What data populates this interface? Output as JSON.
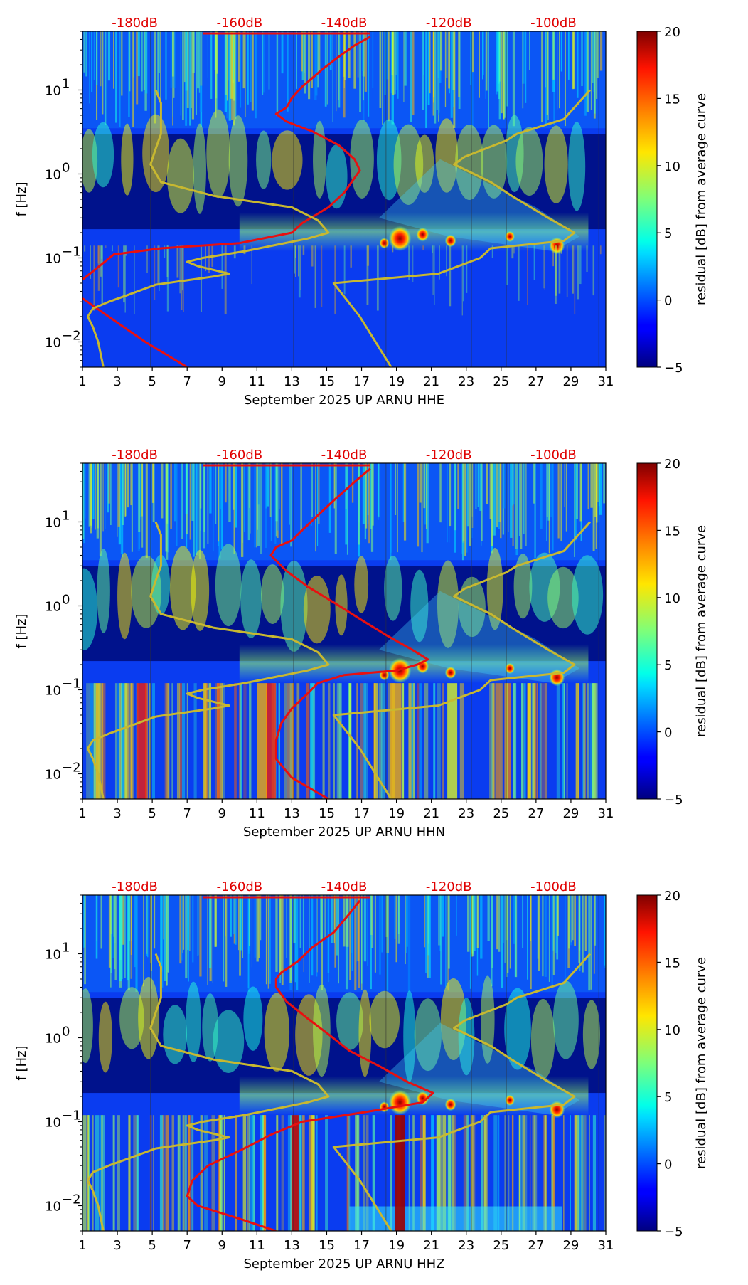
{
  "chart_data": [
    {
      "type": "heatmap",
      "title": "",
      "xlabel": "September 2025 UP ARNU  HHE",
      "ylabel": "f [Hz]",
      "x_ticks": [
        1,
        3,
        5,
        7,
        9,
        11,
        13,
        15,
        17,
        19,
        21,
        23,
        25,
        27,
        29,
        31
      ],
      "xlim": [
        1,
        31
      ],
      "ylim": [
        0.005,
        50
      ],
      "y_scale": "log",
      "y_ticks": [
        {
          "value": 0.01,
          "base": "10",
          "exp": "−2"
        },
        {
          "value": 0.1,
          "base": "10",
          "exp": "−1"
        },
        {
          "value": 1,
          "base": "10",
          "exp": "0"
        },
        {
          "value": 10,
          "base": "10",
          "exp": "1"
        }
      ],
      "top_axis": {
        "labels": [
          "-180dB",
          "-160dB",
          "-140dB",
          "-120dB",
          "-100dB"
        ],
        "values": [
          -180,
          -160,
          -140,
          -120,
          -100
        ],
        "range": [
          -190,
          -90
        ]
      },
      "colorbar": {
        "label": "residual [dB] from average curve",
        "range": [
          -5,
          20
        ],
        "ticks": [
          -5,
          0,
          5,
          10,
          15,
          20
        ],
        "colormap": "jet"
      },
      "series": [
        {
          "name": "average PSD curve (top axis, dB)",
          "color": "#e81010",
          "points": [
            [
              -190,
              0.055
            ],
            [
              -184,
              0.11
            ],
            [
              -175,
              0.13
            ],
            [
              -160,
              0.15
            ],
            [
              -150,
              0.2
            ],
            [
              -148,
              0.26
            ],
            [
              -143,
              0.4
            ],
            [
              -140,
              0.6
            ],
            [
              -138,
              0.9
            ],
            [
              -137,
              1.1
            ],
            [
              -138,
              1.5
            ],
            [
              -141,
              2.2
            ],
            [
              -146,
              3.2
            ],
            [
              -151,
              4.2
            ],
            [
              -153,
              5.2
            ],
            [
              -151,
              6.2
            ],
            [
              -150,
              8
            ],
            [
              -148,
              11
            ],
            [
              -146,
              14
            ],
            [
              -144,
              18
            ],
            [
              -141,
              25
            ],
            [
              -138,
              34
            ],
            [
              -135,
              43
            ]
          ]
        },
        {
          "name": "low-frequency branch (top axis, dB)",
          "color": "#e81010",
          "points": [
            [
              -190,
              0.033
            ],
            [
              -185,
              0.02
            ],
            [
              -178,
              0.01
            ],
            [
              -170,
              0.005
            ]
          ]
        },
        {
          "name": "reference noise model (top axis, dB)",
          "color": "#c8b830",
          "points": [
            [
              -176,
              10
            ],
            [
              -175,
              7
            ],
            [
              -175,
              3
            ],
            [
              -176,
              2
            ],
            [
              -177,
              1.3
            ],
            [
              -175,
              0.8
            ],
            [
              -165,
              0.55
            ],
            [
              -150,
              0.4
            ],
            [
              -145,
              0.28
            ],
            [
              -143,
              0.2
            ],
            [
              -147,
              0.17
            ],
            [
              -159,
              0.12
            ],
            [
              -167,
              0.1
            ],
            [
              -170,
              0.09
            ],
            [
              -168,
              0.08
            ],
            [
              -162,
              0.065
            ],
            [
              -165,
              0.06
            ],
            [
              -176,
              0.048
            ],
            [
              -182,
              0.035
            ],
            [
              -185,
              0.03
            ],
            [
              -188,
              0.025
            ],
            [
              -189,
              0.02
            ],
            [
              -188,
              0.015
            ],
            [
              -187,
              0.01
            ],
            [
              -186,
              0.005
            ]
          ]
        },
        {
          "name": "high noise model (top axis, dB)",
          "color": "#c8b830",
          "points": [
            [
              -131,
              0.005
            ],
            [
              -137,
              0.02
            ],
            [
              -142,
              0.05
            ],
            [
              -122,
              0.065
            ],
            [
              -114,
              0.1
            ],
            [
              -112,
              0.13
            ],
            [
              -98,
              0.16
            ],
            [
              -96,
              0.2
            ],
            [
              -101,
              0.3
            ],
            [
              -108,
              0.55
            ],
            [
              -112,
              0.8
            ],
            [
              -119,
              1.3
            ],
            [
              -117,
              1.6
            ],
            [
              -109,
              2.5
            ],
            [
              -107,
              3
            ],
            [
              -98,
              4.5
            ],
            [
              -93,
              10
            ]
          ]
        }
      ]
    },
    {
      "type": "heatmap",
      "title": "",
      "xlabel": "September 2025 UP ARNU  HHN",
      "ylabel": "f [Hz]",
      "x_ticks": [
        1,
        3,
        5,
        7,
        9,
        11,
        13,
        15,
        17,
        19,
        21,
        23,
        25,
        27,
        29,
        31
      ],
      "xlim": [
        1,
        31
      ],
      "ylim": [
        0.005,
        50
      ],
      "y_scale": "log",
      "y_ticks": [
        {
          "value": 0.01,
          "base": "10",
          "exp": "−2"
        },
        {
          "value": 0.1,
          "base": "10",
          "exp": "−1"
        },
        {
          "value": 1,
          "base": "10",
          "exp": "0"
        },
        {
          "value": 10,
          "base": "10",
          "exp": "1"
        }
      ],
      "top_axis": {
        "labels": [
          "-180dB",
          "-160dB",
          "-140dB",
          "-120dB",
          "-100dB"
        ],
        "values": [
          -180,
          -160,
          -140,
          -120,
          -100
        ],
        "range": [
          -190,
          -90
        ]
      },
      "colorbar": {
        "label": "residual [dB] from average curve",
        "range": [
          -5,
          20
        ],
        "ticks": [
          -5,
          0,
          5,
          10,
          15,
          20
        ],
        "colormap": "jet"
      },
      "series": [
        {
          "name": "average PSD curve (top axis, dB)",
          "color": "#e81010",
          "points": [
            [
              -143,
              0.005
            ],
            [
              -150,
              0.009
            ],
            [
              -153,
              0.015
            ],
            [
              -153,
              0.025
            ],
            [
              -152,
              0.04
            ],
            [
              -150,
              0.06
            ],
            [
              -147,
              0.09
            ],
            [
              -145,
              0.12
            ],
            [
              -140,
              0.15
            ],
            [
              -130,
              0.17
            ],
            [
              -126,
              0.2
            ],
            [
              -124,
              0.23
            ],
            [
              -127,
              0.3
            ],
            [
              -132,
              0.45
            ],
            [
              -137,
              0.7
            ],
            [
              -142,
              1.1
            ],
            [
              -147,
              1.7
            ],
            [
              -151,
              2.6
            ],
            [
              -154,
              4
            ],
            [
              -153,
              5
            ],
            [
              -150,
              6
            ],
            [
              -148,
              8
            ],
            [
              -145,
              12
            ],
            [
              -142,
              18
            ],
            [
              -138,
              30
            ],
            [
              -135,
              43
            ]
          ]
        },
        {
          "name": "reference noise model (top axis, dB)",
          "color": "#c8b830",
          "points": [
            [
              -176,
              10
            ],
            [
              -175,
              7
            ],
            [
              -175,
              3
            ],
            [
              -176,
              2
            ],
            [
              -177,
              1.3
            ],
            [
              -175,
              0.8
            ],
            [
              -165,
              0.55
            ],
            [
              -150,
              0.4
            ],
            [
              -145,
              0.28
            ],
            [
              -143,
              0.2
            ],
            [
              -147,
              0.17
            ],
            [
              -159,
              0.12
            ],
            [
              -167,
              0.1
            ],
            [
              -170,
              0.09
            ],
            [
              -168,
              0.08
            ],
            [
              -162,
              0.065
            ],
            [
              -165,
              0.06
            ],
            [
              -176,
              0.048
            ],
            [
              -182,
              0.035
            ],
            [
              -185,
              0.03
            ],
            [
              -188,
              0.025
            ],
            [
              -189,
              0.02
            ],
            [
              -188,
              0.015
            ],
            [
              -187,
              0.01
            ],
            [
              -186,
              0.005
            ]
          ]
        },
        {
          "name": "high noise model (top axis, dB)",
          "color": "#c8b830",
          "points": [
            [
              -131,
              0.005
            ],
            [
              -137,
              0.02
            ],
            [
              -142,
              0.05
            ],
            [
              -122,
              0.065
            ],
            [
              -114,
              0.1
            ],
            [
              -112,
              0.13
            ],
            [
              -98,
              0.16
            ],
            [
              -96,
              0.2
            ],
            [
              -101,
              0.3
            ],
            [
              -108,
              0.55
            ],
            [
              -112,
              0.8
            ],
            [
              -119,
              1.3
            ],
            [
              -117,
              1.6
            ],
            [
              -109,
              2.5
            ],
            [
              -107,
              3
            ],
            [
              -98,
              4.5
            ],
            [
              -93,
              10
            ]
          ]
        }
      ]
    },
    {
      "type": "heatmap",
      "title": "",
      "xlabel": "September 2025 UP ARNU  HHZ",
      "ylabel": "f [Hz]",
      "x_ticks": [
        1,
        3,
        5,
        7,
        9,
        11,
        13,
        15,
        17,
        19,
        21,
        23,
        25,
        27,
        29,
        31
      ],
      "xlim": [
        1,
        31
      ],
      "ylim": [
        0.005,
        50
      ],
      "y_scale": "log",
      "y_ticks": [
        {
          "value": 0.01,
          "base": "10",
          "exp": "−2"
        },
        {
          "value": 0.1,
          "base": "10",
          "exp": "−1"
        },
        {
          "value": 1,
          "base": "10",
          "exp": "0"
        },
        {
          "value": 10,
          "base": "10",
          "exp": "1"
        }
      ],
      "top_axis": {
        "labels": [
          "-180dB",
          "-160dB",
          "-140dB",
          "-120dB",
          "-100dB"
        ],
        "values": [
          -180,
          -160,
          -140,
          -120,
          -100
        ],
        "range": [
          -190,
          -90
        ]
      },
      "colorbar": {
        "label": "residual [dB] from average curve",
        "range": [
          -5,
          20
        ],
        "ticks": [
          -5,
          0,
          5,
          10,
          15,
          20
        ],
        "colormap": "jet"
      },
      "series": [
        {
          "name": "average PSD curve (top axis, dB)",
          "color": "#e81010",
          "points": [
            [
              -153,
              0.005
            ],
            [
              -160,
              0.007
            ],
            [
              -168,
              0.01
            ],
            [
              -170,
              0.013
            ],
            [
              -169,
              0.02
            ],
            [
              -166,
              0.03
            ],
            [
              -160,
              0.045
            ],
            [
              -154,
              0.07
            ],
            [
              -148,
              0.1
            ],
            [
              -136,
              0.13
            ],
            [
              -125,
              0.17
            ],
            [
              -123,
              0.22
            ],
            [
              -128,
              0.3
            ],
            [
              -133,
              0.45
            ],
            [
              -139,
              0.7
            ],
            [
              -143,
              1.1
            ],
            [
              -147,
              1.7
            ],
            [
              -151,
              2.7
            ],
            [
              -153,
              4
            ],
            [
              -153,
              5
            ],
            [
              -152,
              6
            ],
            [
              -149,
              8
            ],
            [
              -146,
              12
            ],
            [
              -142,
              18
            ],
            [
              -139,
              30
            ],
            [
              -137,
              43
            ]
          ]
        },
        {
          "name": "reference noise model (top axis, dB)",
          "color": "#c8b830",
          "points": [
            [
              -176,
              10
            ],
            [
              -175,
              7
            ],
            [
              -175,
              3
            ],
            [
              -176,
              2
            ],
            [
              -177,
              1.3
            ],
            [
              -175,
              0.8
            ],
            [
              -165,
              0.55
            ],
            [
              -150,
              0.4
            ],
            [
              -145,
              0.28
            ],
            [
              -143,
              0.2
            ],
            [
              -147,
              0.17
            ],
            [
              -159,
              0.12
            ],
            [
              -167,
              0.1
            ],
            [
              -170,
              0.09
            ],
            [
              -168,
              0.08
            ],
            [
              -162,
              0.065
            ],
            [
              -165,
              0.06
            ],
            [
              -176,
              0.048
            ],
            [
              -182,
              0.035
            ],
            [
              -185,
              0.03
            ],
            [
              -188,
              0.025
            ],
            [
              -189,
              0.02
            ],
            [
              -188,
              0.015
            ],
            [
              -187,
              0.01
            ],
            [
              -186,
              0.005
            ]
          ]
        },
        {
          "name": "high noise model (top axis, dB)",
          "color": "#c8b830",
          "points": [
            [
              -131,
              0.005
            ],
            [
              -137,
              0.02
            ],
            [
              -142,
              0.05
            ],
            [
              -122,
              0.065
            ],
            [
              -114,
              0.1
            ],
            [
              -112,
              0.13
            ],
            [
              -98,
              0.16
            ],
            [
              -96,
              0.2
            ],
            [
              -101,
              0.3
            ],
            [
              -108,
              0.55
            ],
            [
              -112,
              0.8
            ],
            [
              -119,
              1.3
            ],
            [
              -117,
              1.6
            ],
            [
              -109,
              2.5
            ],
            [
              -107,
              3
            ],
            [
              -98,
              4.5
            ],
            [
              -93,
              10
            ]
          ]
        }
      ]
    }
  ]
}
